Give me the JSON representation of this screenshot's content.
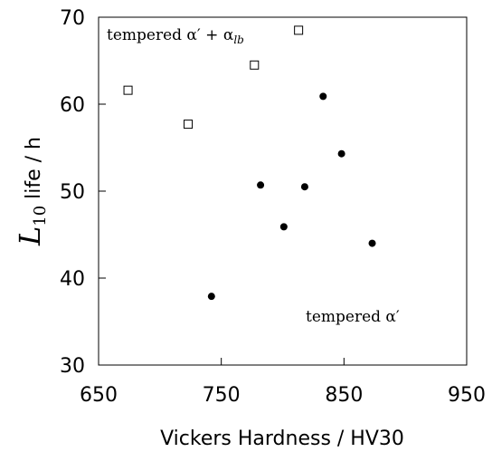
{
  "chart_data": {
    "type": "scatter",
    "xlabel": "Vickers Hardness / HV30",
    "ylabel_main": "L",
    "ylabel_sub": "10",
    "ylabel_rest": " life / h",
    "xlim": [
      650,
      950
    ],
    "ylim": [
      30,
      70
    ],
    "xticks": [
      650,
      750,
      850,
      950
    ],
    "yticks": [
      30,
      40,
      50,
      60,
      70
    ],
    "grid": false,
    "series": [
      {
        "marker": "square-open",
        "color": "#000000",
        "points": [
          [
            674,
            61.6
          ],
          [
            723,
            57.7
          ],
          [
            777,
            64.5
          ],
          [
            813,
            68.5
          ]
        ]
      },
      {
        "marker": "circle-filled",
        "color": "#000000",
        "points": [
          [
            742,
            37.9
          ],
          [
            782,
            50.7
          ],
          [
            801,
            45.9
          ],
          [
            818,
            50.5
          ],
          [
            833,
            60.9
          ],
          [
            848,
            54.3
          ],
          [
            873,
            44.0
          ]
        ]
      }
    ],
    "annotations": [
      {
        "text": "tempered α′ + α",
        "subscript": "lb",
        "position": "top-left"
      },
      {
        "text": "tempered α′",
        "position": "bottom-right"
      }
    ]
  }
}
